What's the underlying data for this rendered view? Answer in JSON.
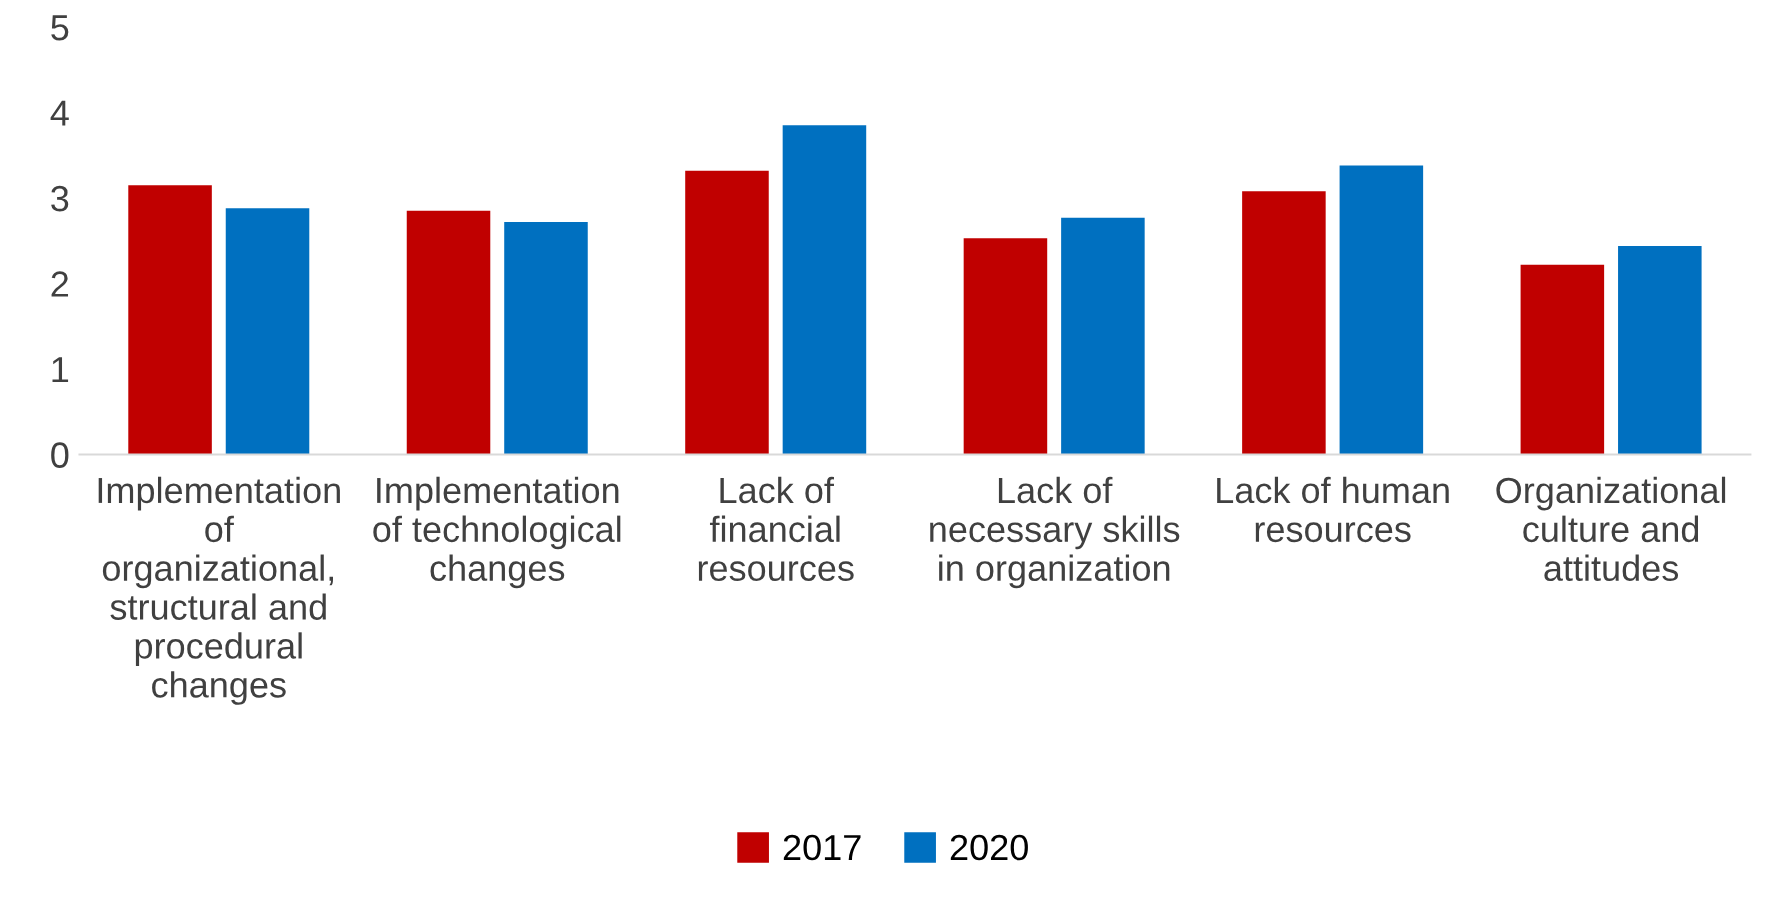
{
  "chart_data": {
    "type": "bar",
    "categories": [
      "Implementation of organizational, structural and procedural changes",
      "Implementation of technological changes",
      "Lack of financial resources",
      "Lack of necessary skills in organization",
      "Lack of human resources",
      "Organizational culture and attitudes"
    ],
    "series": [
      {
        "name": "2017",
        "color": "#c00000",
        "values": [
          3.15,
          2.85,
          3.32,
          2.53,
          3.08,
          2.22
        ]
      },
      {
        "name": "2020",
        "color": "#0070c0",
        "values": [
          2.88,
          2.72,
          3.85,
          2.77,
          3.38,
          2.44
        ]
      }
    ],
    "ylim": [
      0,
      5
    ],
    "yticks": [
      0,
      1,
      2,
      3,
      4,
      5
    ],
    "grid": false,
    "legend": "bottom"
  }
}
